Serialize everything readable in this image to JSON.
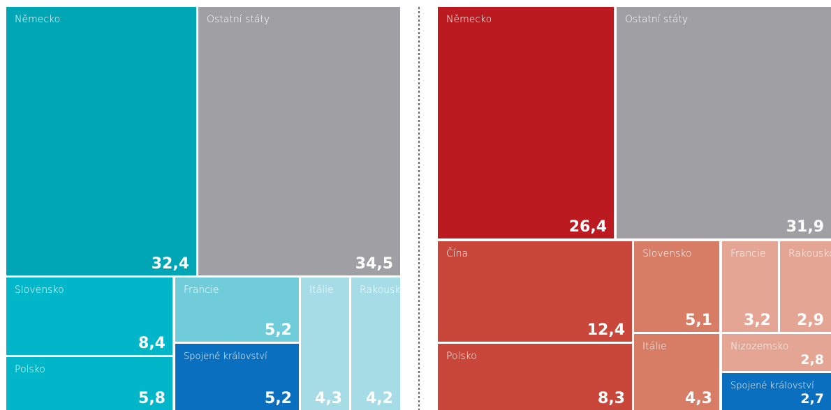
{
  "chart_data": [
    {
      "type": "treemap",
      "categories": [
        "Německo",
        "Ostatní státy",
        "Slovensko",
        "Polsko",
        "Francie",
        "Spojené království",
        "Itálie",
        "Rakousko"
      ],
      "values": [
        32.4,
        34.5,
        8.4,
        5.8,
        5.2,
        5.2,
        4.3,
        4.2
      ],
      "value_labels": [
        "32,4",
        "34,5",
        "8,4",
        "5,8",
        "5,2",
        "5,2",
        "4,3",
        "4,2"
      ],
      "colors": [
        "#00a6b6",
        "#a0a0a4",
        "#00b6c8",
        "#00b6c8",
        "#70ccd9",
        "#0b6fc0",
        "#a6dce5",
        "#a6dce5"
      ]
    },
    {
      "type": "treemap",
      "categories": [
        "Německo",
        "Ostatní státy",
        "Čína",
        "Polsko",
        "Slovensko",
        "Itálie",
        "Francie",
        "Rakousko",
        "Nizozemsko",
        "Spojené království"
      ],
      "values": [
        26.4,
        31.9,
        12.4,
        8.3,
        5.1,
        4.3,
        3.2,
        2.9,
        2.8,
        2.7
      ],
      "value_labels": [
        "26,4",
        "31,9",
        "12,4",
        "8,3",
        "5,1",
        "4,3",
        "3,2",
        "2,9",
        "2,8",
        "2,7"
      ],
      "colors": [
        "#bb1a20",
        "#a0a0a4",
        "#c8473a",
        "#c8473a",
        "#d77c65",
        "#d77c65",
        "#e4a594",
        "#e4a594",
        "#e4a594",
        "#0b6fc0"
      ]
    }
  ]
}
